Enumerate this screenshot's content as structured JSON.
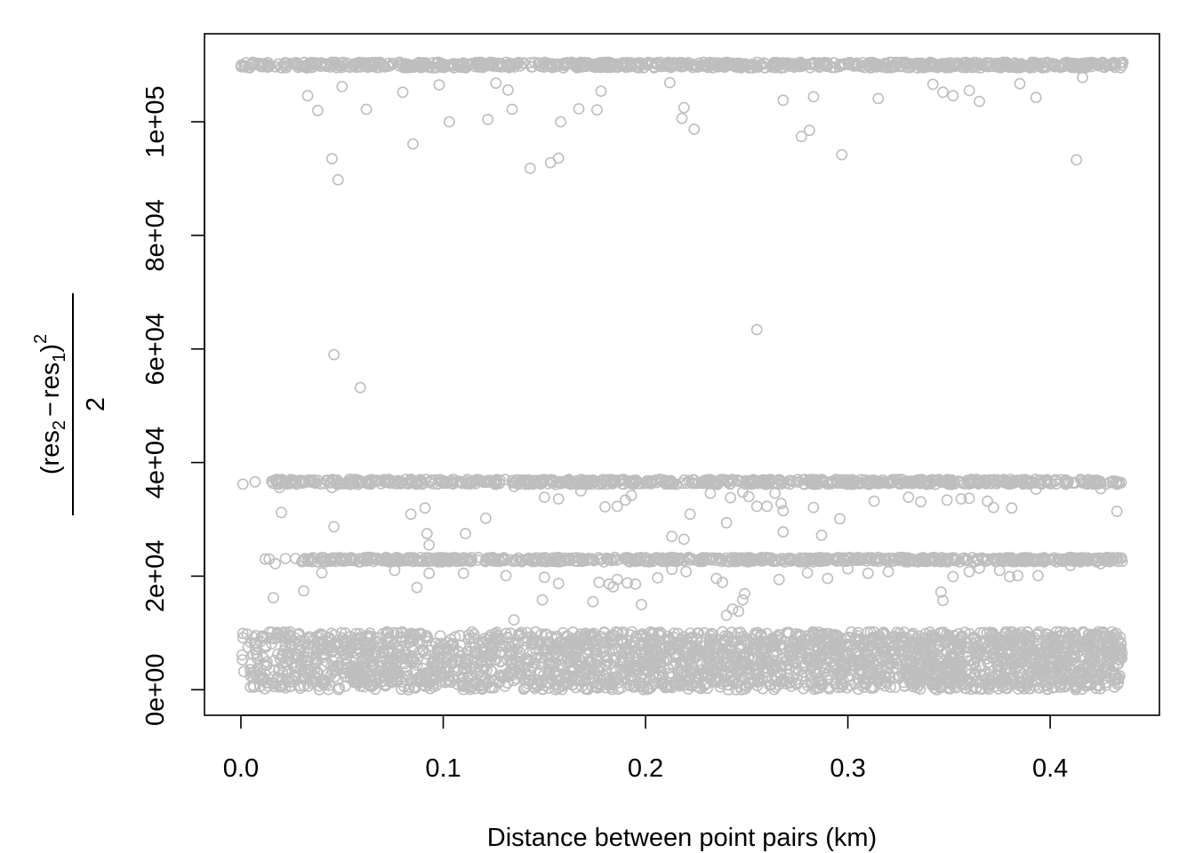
{
  "chart_data": {
    "type": "scatter",
    "title": "",
    "xlabel": "Distance between point pairs (km)",
    "ylabel": {
      "open_paren": "(",
      "res_a": "res",
      "sub_a": "2",
      "minus": "−",
      "res_b": "res",
      "sub_b": "1",
      "close_paren": ")",
      "power": "2",
      "denominator": "2"
    },
    "xlim": [
      -0.018,
      0.454
    ],
    "ylim": [
      -4500,
      115500
    ],
    "x_ticks": [
      {
        "value": 0.0,
        "label": "0.0"
      },
      {
        "value": 0.1,
        "label": "0.1"
      },
      {
        "value": 0.2,
        "label": "0.2"
      },
      {
        "value": 0.3,
        "label": "0.3"
      },
      {
        "value": 0.4,
        "label": "0.4"
      }
    ],
    "y_ticks": [
      {
        "value": 0,
        "label": "0e+00"
      },
      {
        "value": 20000,
        "label": "2e+04"
      },
      {
        "value": 40000,
        "label": "4e+04"
      },
      {
        "value": 60000,
        "label": "6e+04"
      },
      {
        "value": 80000,
        "label": "8e+04"
      },
      {
        "value": 100000,
        "label": "1e+05"
      }
    ],
    "grid": false,
    "marker": "open-circle",
    "point_color": "#BEBEBE",
    "series": [
      {
        "points": [
          [
            0.046,
            59000
          ],
          [
            0.059,
            53200
          ],
          [
            0.255,
            63400
          ],
          [
            0.045,
            93500
          ],
          [
            0.048,
            89800
          ],
          [
            0.085,
            96100
          ],
          [
            0.143,
            91800
          ],
          [
            0.153,
            92800
          ],
          [
            0.157,
            93600
          ],
          [
            0.277,
            97400
          ],
          [
            0.297,
            94200
          ],
          [
            0.413,
            93300
          ],
          [
            0.219,
            102500
          ],
          [
            0.218,
            100600
          ],
          [
            0.224,
            98700
          ],
          [
            0.281,
            98500
          ],
          [
            0.103,
            100000
          ],
          [
            0.122,
            100400
          ],
          [
            0.134,
            102200
          ],
          [
            0.158,
            100000
          ],
          [
            0.167,
            102300
          ],
          [
            0.176,
            102100
          ],
          [
            0.038,
            102000
          ],
          [
            0.062,
            102200
          ],
          [
            0.033,
            104600
          ],
          [
            0.08,
            105200
          ],
          [
            0.268,
            103800
          ],
          [
            0.283,
            104400
          ],
          [
            0.315,
            104100
          ],
          [
            0.347,
            105200
          ],
          [
            0.352,
            104600
          ],
          [
            0.365,
            103600
          ],
          [
            0.393,
            104300
          ],
          [
            0.05,
            106200
          ],
          [
            0.098,
            106500
          ],
          [
            0.126,
            106800
          ],
          [
            0.132,
            105600
          ],
          [
            0.178,
            105400
          ],
          [
            0.212,
            106900
          ],
          [
            0.342,
            106600
          ],
          [
            0.36,
            105500
          ],
          [
            0.385,
            106700
          ],
          [
            0.416,
            107800
          ],
          [
            0.014,
            23000
          ],
          [
            0.017,
            22200
          ],
          [
            0.031,
            17400
          ],
          [
            0.016,
            16200
          ],
          [
            0.04,
            20600
          ],
          [
            0.076,
            21000
          ],
          [
            0.087,
            18000
          ],
          [
            0.093,
            20500
          ],
          [
            0.11,
            20500
          ],
          [
            0.131,
            20100
          ],
          [
            0.135,
            12300
          ],
          [
            0.149,
            15800
          ],
          [
            0.15,
            19800
          ],
          [
            0.157,
            18700
          ],
          [
            0.174,
            15500
          ],
          [
            0.177,
            18900
          ],
          [
            0.182,
            18600
          ],
          [
            0.184,
            18100
          ],
          [
            0.186,
            19400
          ],
          [
            0.191,
            18800
          ],
          [
            0.195,
            18600
          ],
          [
            0.198,
            15000
          ],
          [
            0.206,
            19700
          ],
          [
            0.213,
            21200
          ],
          [
            0.22,
            20800
          ],
          [
            0.235,
            19600
          ],
          [
            0.238,
            18900
          ],
          [
            0.24,
            13100
          ],
          [
            0.243,
            14200
          ],
          [
            0.246,
            13800
          ],
          [
            0.248,
            15800
          ],
          [
            0.249,
            16900
          ],
          [
            0.266,
            19400
          ],
          [
            0.28,
            20600
          ],
          [
            0.29,
            19600
          ],
          [
            0.3,
            21300
          ],
          [
            0.31,
            20500
          ],
          [
            0.32,
            20800
          ],
          [
            0.346,
            17200
          ],
          [
            0.347,
            15700
          ],
          [
            0.352,
            19900
          ],
          [
            0.36,
            20800
          ],
          [
            0.365,
            21400
          ],
          [
            0.375,
            21000
          ],
          [
            0.38,
            19900
          ],
          [
            0.384,
            20100
          ],
          [
            0.394,
            20100
          ],
          [
            0.41,
            21900
          ],
          [
            0.425,
            22200
          ],
          [
            0.012,
            23000
          ],
          [
            0.022,
            23100
          ],
          [
            0.027,
            23100
          ],
          [
            0.036,
            23200
          ],
          [
            0.055,
            23000
          ],
          [
            0.001,
            36200
          ],
          [
            0.007,
            36600
          ],
          [
            0.019,
            35600
          ],
          [
            0.02,
            31200
          ],
          [
            0.045,
            35600
          ],
          [
            0.046,
            28700
          ],
          [
            0.084,
            30900
          ],
          [
            0.091,
            32000
          ],
          [
            0.092,
            27500
          ],
          [
            0.093,
            25500
          ],
          [
            0.111,
            27500
          ],
          [
            0.121,
            30200
          ],
          [
            0.135,
            35800
          ],
          [
            0.15,
            33900
          ],
          [
            0.157,
            33600
          ],
          [
            0.168,
            35000
          ],
          [
            0.18,
            32200
          ],
          [
            0.186,
            32300
          ],
          [
            0.19,
            33400
          ],
          [
            0.193,
            34200
          ],
          [
            0.213,
            27000
          ],
          [
            0.219,
            26500
          ],
          [
            0.222,
            30900
          ],
          [
            0.232,
            34600
          ],
          [
            0.24,
            29400
          ],
          [
            0.242,
            33800
          ],
          [
            0.248,
            34800
          ],
          [
            0.251,
            34000
          ],
          [
            0.255,
            32300
          ],
          [
            0.26,
            32300
          ],
          [
            0.264,
            34600
          ],
          [
            0.267,
            32800
          ],
          [
            0.268,
            31500
          ],
          [
            0.268,
            27800
          ],
          [
            0.283,
            32100
          ],
          [
            0.287,
            27200
          ],
          [
            0.296,
            30100
          ],
          [
            0.313,
            33200
          ],
          [
            0.33,
            33900
          ],
          [
            0.336,
            33100
          ],
          [
            0.349,
            33400
          ],
          [
            0.356,
            33600
          ],
          [
            0.36,
            33700
          ],
          [
            0.369,
            33200
          ],
          [
            0.372,
            32100
          ],
          [
            0.381,
            32000
          ],
          [
            0.393,
            35300
          ],
          [
            0.425,
            35400
          ],
          [
            0.433,
            31400
          ]
        ]
      }
    ]
  }
}
